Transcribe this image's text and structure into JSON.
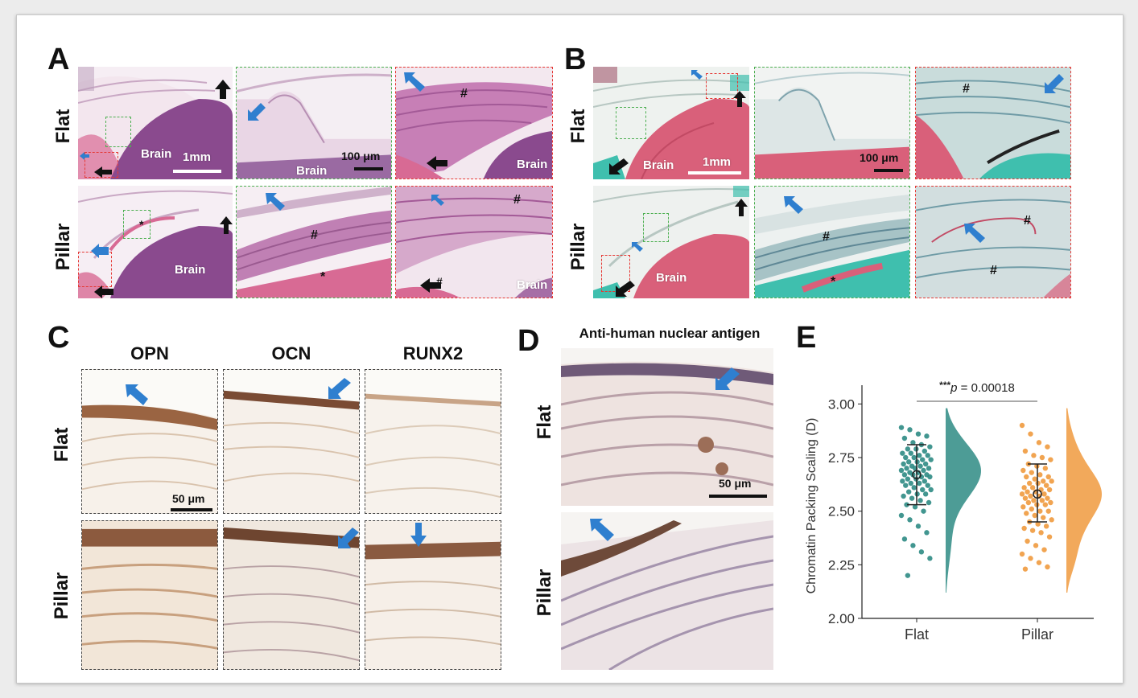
{
  "panels": {
    "a": "A",
    "b": "B",
    "c": "C",
    "d": "D",
    "e": "E"
  },
  "rows": {
    "flat": "Flat",
    "pillar": "Pillar"
  },
  "brain": "Brain",
  "scale": {
    "mm": "1mm",
    "um100": "100 μm",
    "um50": "50 μm"
  },
  "marks": {
    "hash": "#",
    "star": "*"
  },
  "c_columns": [
    "OPN",
    "OCN",
    "RUNX2"
  ],
  "d_title": "Anti-human nuclear antigen",
  "colors": {
    "he_purple": "#8a4a8e",
    "he_pink": "#d86a94",
    "tri_teal": "#3fbfae",
    "flat": "#2e8b84",
    "pillar": "#f09a3e",
    "arrow_blue": "#2f7fcf"
  },
  "chart_data": {
    "type": "scatter",
    "subtype": "raincloud",
    "categories": [
      "Flat",
      "Pillar"
    ],
    "ylabel": "Chromatin Packing Scaling (D)",
    "xlabel": "",
    "ylim": [
      2.0,
      3.05
    ],
    "yticks": [
      2.0,
      2.25,
      2.5,
      2.75,
      3.0
    ],
    "ytick_labels": [
      "2.00",
      "2.25",
      "2.50",
      "2.75",
      "3.00"
    ],
    "significance": {
      "stars": "***",
      "p_label": "p",
      "p_text": " = 0.00018",
      "between": [
        "Flat",
        "Pillar"
      ]
    },
    "series": [
      {
        "category": "Flat",
        "mean": 2.67,
        "sd_low": 2.53,
        "sd_high": 2.81,
        "color": "#2e8b84",
        "values": [
          2.89,
          2.88,
          2.86,
          2.85,
          2.84,
          2.82,
          2.81,
          2.8,
          2.79,
          2.79,
          2.78,
          2.77,
          2.77,
          2.76,
          2.76,
          2.75,
          2.75,
          2.74,
          2.74,
          2.73,
          2.73,
          2.72,
          2.72,
          2.71,
          2.71,
          2.7,
          2.7,
          2.7,
          2.69,
          2.69,
          2.68,
          2.68,
          2.67,
          2.67,
          2.67,
          2.66,
          2.66,
          2.65,
          2.65,
          2.64,
          2.64,
          2.63,
          2.63,
          2.62,
          2.62,
          2.61,
          2.6,
          2.6,
          2.59,
          2.58,
          2.58,
          2.57,
          2.56,
          2.55,
          2.54,
          2.53,
          2.52,
          2.5,
          2.48,
          2.46,
          2.43,
          2.4,
          2.37,
          2.34,
          2.31,
          2.28,
          2.2
        ]
      },
      {
        "category": "Pillar",
        "mean": 2.58,
        "sd_low": 2.45,
        "sd_high": 2.72,
        "color": "#f09a3e",
        "values": [
          2.9,
          2.86,
          2.82,
          2.8,
          2.78,
          2.76,
          2.75,
          2.74,
          2.72,
          2.71,
          2.7,
          2.69,
          2.68,
          2.67,
          2.66,
          2.66,
          2.65,
          2.64,
          2.64,
          2.63,
          2.63,
          2.62,
          2.61,
          2.61,
          2.6,
          2.6,
          2.59,
          2.59,
          2.58,
          2.58,
          2.57,
          2.57,
          2.56,
          2.56,
          2.55,
          2.55,
          2.54,
          2.54,
          2.53,
          2.53,
          2.52,
          2.51,
          2.5,
          2.5,
          2.49,
          2.48,
          2.47,
          2.46,
          2.45,
          2.44,
          2.43,
          2.42,
          2.41,
          2.4,
          2.38,
          2.36,
          2.34,
          2.32,
          2.3,
          2.28,
          2.26,
          2.24,
          2.23
        ]
      }
    ]
  }
}
